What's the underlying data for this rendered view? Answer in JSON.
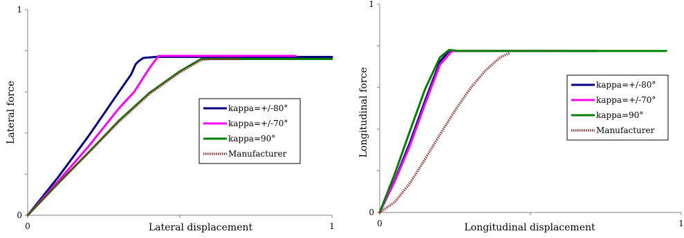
{
  "colors": {
    "axis": "#808080",
    "background": "#ffffff"
  },
  "chart_data": [
    {
      "type": "line",
      "xlabel": "Lateral displacement",
      "ylabel": "Lateral force",
      "xlim": [
        0,
        1
      ],
      "ylim": [
        0,
        1
      ],
      "x_ticks": [
        "0",
        "1"
      ],
      "y_ticks": [
        "0",
        "1"
      ],
      "grid": false,
      "legend_position": "right",
      "series": [
        {
          "name": "kappa=+/-80°",
          "color": "#000080",
          "style": "solid",
          "points": [
            [
              0,
              0
            ],
            [
              0.1,
              0.185
            ],
            [
              0.2,
              0.385
            ],
            [
              0.3,
              0.6
            ],
            [
              0.34,
              0.685
            ],
            [
              0.355,
              0.735
            ],
            [
              0.365,
              0.75
            ],
            [
              0.38,
              0.765
            ],
            [
              0.42,
              0.77
            ],
            [
              0.55,
              0.77
            ],
            [
              0.7,
              0.77
            ],
            [
              1.0,
              0.77
            ]
          ]
        },
        {
          "name": "kappa=+/-70°",
          "color": "#ff00ff",
          "style": "solid",
          "points": [
            [
              0,
              0
            ],
            [
              0.1,
              0.165
            ],
            [
              0.2,
              0.335
            ],
            [
              0.3,
              0.52
            ],
            [
              0.35,
              0.6
            ],
            [
              0.4,
              0.715
            ],
            [
              0.43,
              0.775
            ],
            [
              0.5,
              0.775
            ],
            [
              0.7,
              0.775
            ],
            [
              0.88,
              0.775
            ]
          ]
        },
        {
          "name": "kappa=90°",
          "color": "#008000",
          "style": "solid",
          "points": [
            [
              0,
              0
            ],
            [
              0.1,
              0.155
            ],
            [
              0.2,
              0.305
            ],
            [
              0.3,
              0.46
            ],
            [
              0.4,
              0.595
            ],
            [
              0.5,
              0.7
            ],
            [
              0.57,
              0.76
            ],
            [
              0.6,
              0.76
            ],
            [
              0.8,
              0.76
            ],
            [
              1.0,
              0.76
            ]
          ]
        },
        {
          "name": "Manufacturer",
          "color": "#993333",
          "style": "dotted",
          "points": [
            [
              0,
              0
            ],
            [
              0.1,
              0.155
            ],
            [
              0.2,
              0.305
            ],
            [
              0.3,
              0.455
            ],
            [
              0.4,
              0.59
            ],
            [
              0.5,
              0.695
            ],
            [
              0.57,
              0.755
            ],
            [
              0.6,
              0.76
            ],
            [
              0.7,
              0.76
            ]
          ]
        }
      ],
      "legend": [
        "kappa=+/-80°",
        "kappa=+/-70°",
        "kappa=90°",
        "Manufacturer"
      ]
    },
    {
      "type": "line",
      "xlabel": "Longitudinal displacement",
      "ylabel": "Longitudinal force",
      "xlim": [
        0,
        1
      ],
      "ylim": [
        0,
        1
      ],
      "x_ticks": [
        "0",
        "1"
      ],
      "y_ticks": [
        "0",
        "1"
      ],
      "grid": false,
      "legend_position": "right",
      "series": [
        {
          "name": "kappa=+/-80°",
          "color": "#000080",
          "style": "solid",
          "points": [
            [
              0,
              0
            ],
            [
              0.05,
              0.155
            ],
            [
              0.1,
              0.335
            ],
            [
              0.15,
              0.535
            ],
            [
              0.2,
              0.725
            ],
            [
              0.23,
              0.775
            ],
            [
              0.26,
              0.775
            ],
            [
              0.3,
              0.775
            ],
            [
              0.6,
              0.775
            ],
            [
              0.72,
              0.775
            ]
          ]
        },
        {
          "name": "kappa=+/-70°",
          "color": "#ff00ff",
          "style": "solid",
          "points": [
            [
              0,
              0
            ],
            [
              0.05,
              0.15
            ],
            [
              0.1,
              0.32
            ],
            [
              0.15,
              0.52
            ],
            [
              0.2,
              0.71
            ],
            [
              0.24,
              0.775
            ],
            [
              0.28,
              0.775
            ],
            [
              0.35,
              0.775
            ],
            [
              0.6,
              0.775
            ]
          ]
        },
        {
          "name": "kappa=90°",
          "color": "#008000",
          "style": "solid",
          "points": [
            [
              0,
              0
            ],
            [
              0.05,
              0.185
            ],
            [
              0.1,
              0.39
            ],
            [
              0.15,
              0.59
            ],
            [
              0.2,
              0.745
            ],
            [
              0.23,
              0.78
            ],
            [
              0.26,
              0.775
            ],
            [
              0.3,
              0.775
            ],
            [
              0.6,
              0.775
            ],
            [
              0.95,
              0.775
            ]
          ]
        },
        {
          "name": "Manufacturer",
          "color": "#993333",
          "style": "dotted",
          "points": [
            [
              0,
              0
            ],
            [
              0.05,
              0.05
            ],
            [
              0.1,
              0.14
            ],
            [
              0.15,
              0.255
            ],
            [
              0.2,
              0.375
            ],
            [
              0.25,
              0.49
            ],
            [
              0.3,
              0.595
            ],
            [
              0.35,
              0.68
            ],
            [
              0.4,
              0.745
            ],
            [
              0.43,
              0.765
            ]
          ]
        }
      ],
      "legend": [
        "kappa=+/-80°",
        "kappa=+/-70°",
        "kappa=90°",
        "Manufacturer"
      ]
    }
  ]
}
